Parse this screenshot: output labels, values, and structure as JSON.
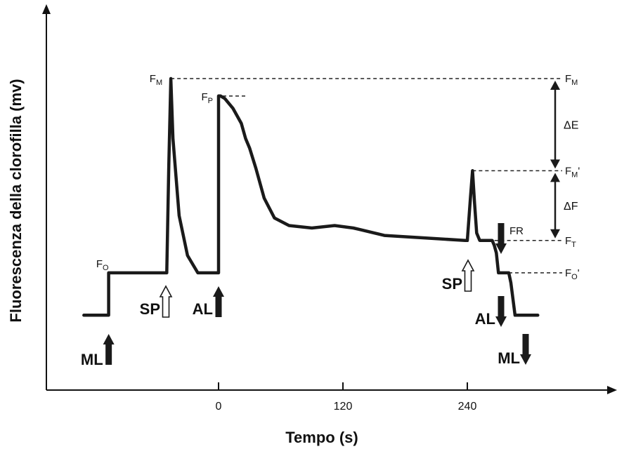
{
  "chart_data": {
    "type": "line",
    "title": "",
    "xlabel": "Tempo (s)",
    "ylabel": "Fluorescenza della clorofilla (mv)",
    "x_ticks": [
      "0",
      "120",
      "240"
    ],
    "grid": false,
    "legend": "none",
    "colors": {
      "curve": "#1a1a1a",
      "axes": "#111111",
      "dashes": "#222222"
    },
    "series": [
      {
        "points": [
          [
            -130,
            0.05
          ],
          [
            -106,
            0.05
          ],
          [
            -106,
            0.22
          ],
          [
            -50,
            0.22
          ],
          [
            -48,
            0.65
          ],
          [
            -46,
            1.0
          ],
          [
            -44,
            0.76
          ],
          [
            -38,
            0.45
          ],
          [
            -30,
            0.29
          ],
          [
            -20,
            0.22
          ],
          [
            0,
            0.22
          ],
          [
            0,
            0.93
          ],
          [
            2,
            0.93
          ],
          [
            6,
            0.92
          ],
          [
            14,
            0.88
          ],
          [
            22,
            0.82
          ],
          [
            26,
            0.76
          ],
          [
            30,
            0.72
          ],
          [
            36,
            0.64
          ],
          [
            44,
            0.52
          ],
          [
            54,
            0.44
          ],
          [
            68,
            0.41
          ],
          [
            90,
            0.4
          ],
          [
            112,
            0.41
          ],
          [
            130,
            0.4
          ],
          [
            160,
            0.37
          ],
          [
            200,
            0.36
          ],
          [
            238,
            0.35
          ],
          [
            240,
            0.35
          ],
          [
            243,
            0.52
          ],
          [
            245,
            0.63
          ],
          [
            247,
            0.5
          ],
          [
            249,
            0.38
          ],
          [
            252,
            0.35
          ],
          [
            264,
            0.35
          ],
          [
            266,
            0.33
          ],
          [
            268,
            0.3
          ],
          [
            270,
            0.22
          ],
          [
            280,
            0.22
          ],
          [
            282,
            0.18
          ],
          [
            286,
            0.05
          ],
          [
            308,
            0.05
          ]
        ]
      }
    ],
    "curve_labels": {
      "FO": {
        "main": "F",
        "sub": "O",
        "x": -104,
        "y": 0.22
      },
      "FM": {
        "main": "F",
        "sub": "M",
        "x": -46,
        "y": 1.0
      },
      "FP": {
        "main": "F",
        "sub": "P",
        "x": 0,
        "y": 0.93
      }
    },
    "reference_levels": [
      {
        "main": "F",
        "sub": "M",
        "prime": "",
        "y": 1.0,
        "x_start": -46
      },
      {
        "main": "F",
        "sub": "M",
        "prime": "'",
        "y": 0.63,
        "x_start": 245
      },
      {
        "main": "F",
        "sub": "T",
        "prime": "",
        "y": 0.35,
        "x_start": 254
      },
      {
        "main": "F",
        "sub": "O",
        "prime": "'",
        "y": 0.22,
        "x_start": 280
      }
    ],
    "fp_dash_end": 28,
    "deltas": [
      {
        "label": "ΔE",
        "from": 1.0,
        "to": 0.63
      },
      {
        "label": "ΔF",
        "from": 0.63,
        "to": 0.35
      }
    ],
    "markers": [
      {
        "label": "ML",
        "direction": "up",
        "style": "filled",
        "x": -106
      },
      {
        "label": "SP",
        "direction": "up",
        "style": "hollow",
        "x": -49
      },
      {
        "label": "AL",
        "direction": "up",
        "style": "filled",
        "x": 0
      },
      {
        "label": "SP",
        "direction": "up",
        "style": "hollow",
        "x": 240
      },
      {
        "label": "FR",
        "direction": "down",
        "style": "filled",
        "x": 268
      },
      {
        "label": "AL",
        "direction": "down",
        "style": "filled",
        "x": 268
      },
      {
        "label": "ML",
        "direction": "down",
        "style": "filled",
        "x": 290
      }
    ]
  }
}
